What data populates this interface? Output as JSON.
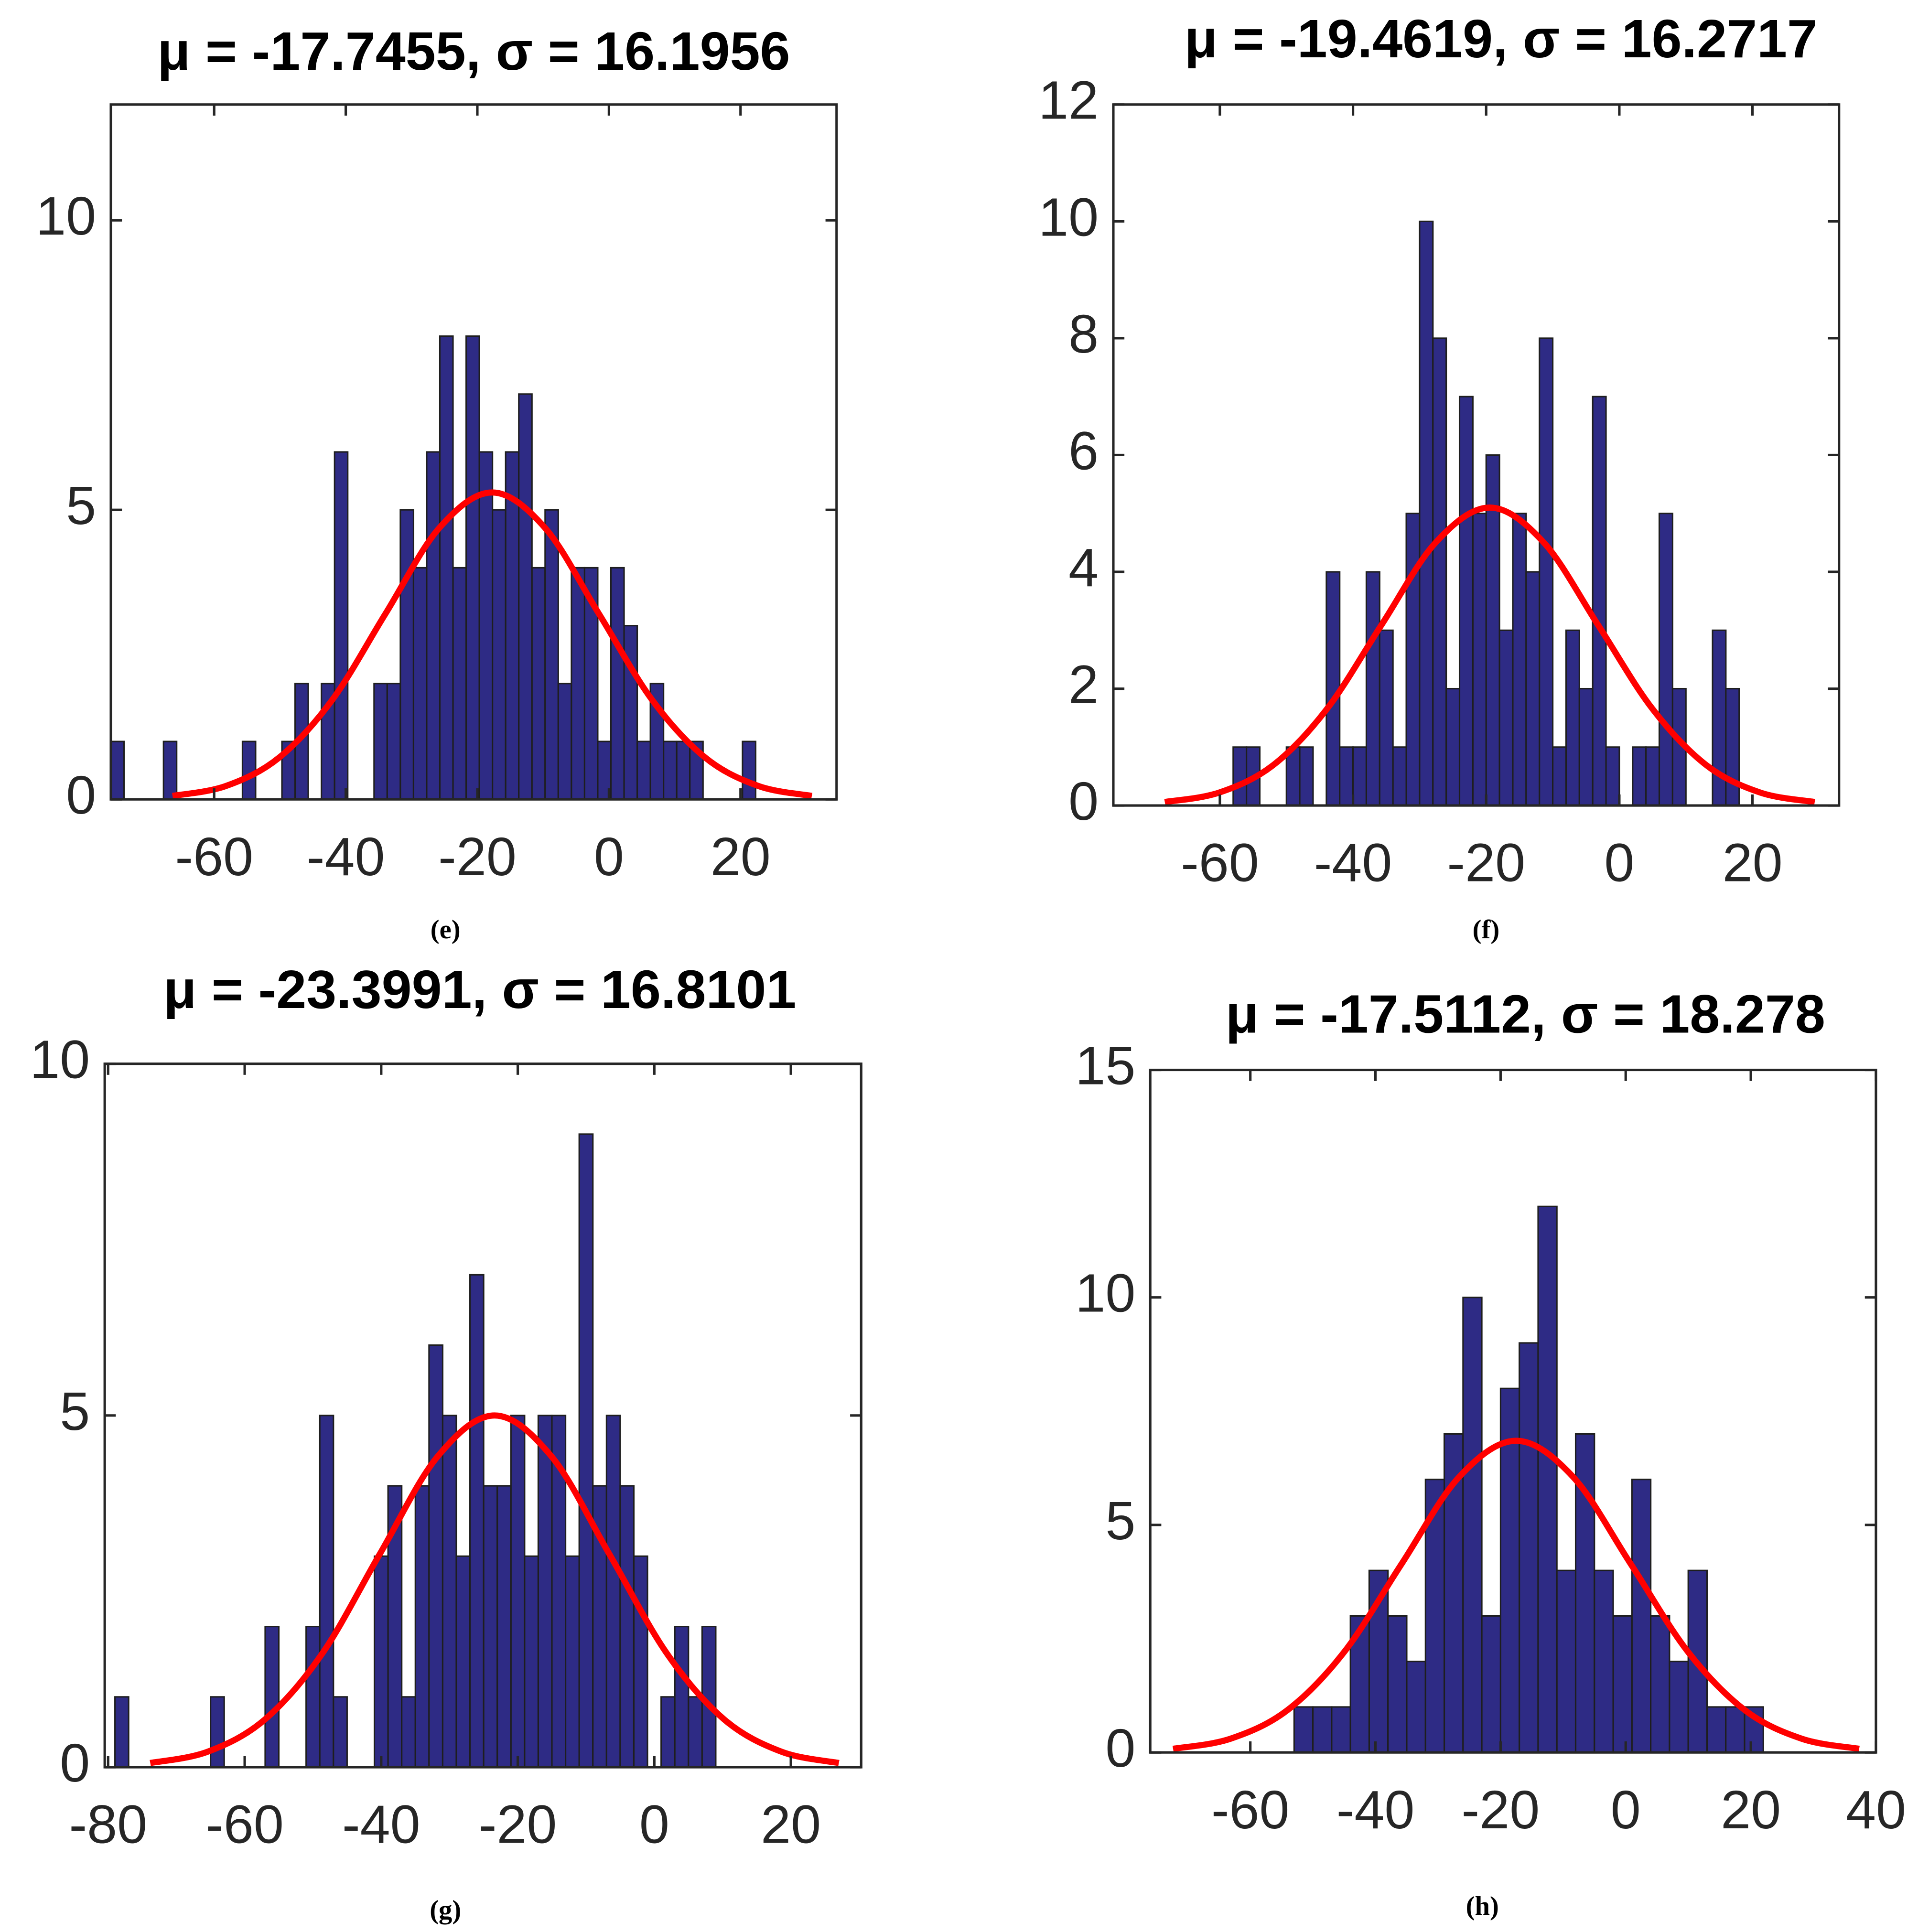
{
  "chart_data": [
    {
      "type": "histogram",
      "title": "μ = -17.7455, σ = 16.1956",
      "caption": "(e)",
      "bins": [
        -75.7,
        -73.7,
        -71.7,
        -69.7,
        -67.7,
        -65.7,
        -63.7,
        -61.7,
        -59.7,
        -57.7,
        -55.7,
        -53.7,
        -51.7,
        -49.7,
        -47.7,
        -45.7,
        -43.7,
        -41.7,
        -39.7,
        -37.7,
        -35.7,
        -33.7,
        -31.7,
        -29.7,
        -27.7,
        -25.7,
        -23.7,
        -21.7,
        -19.7,
        -17.7,
        -15.7,
        -13.7,
        -11.7,
        -9.7,
        -7.7,
        -5.7,
        -3.7,
        -1.7,
        0.3,
        2.3,
        4.3,
        6.3,
        8.3,
        10.3,
        12.3,
        14.3,
        16.3,
        18.3,
        20.3,
        22.3,
        24.3
      ],
      "counts": [
        1,
        0,
        0,
        0,
        1,
        0,
        0,
        0,
        0,
        0,
        1,
        0,
        0,
        1,
        2,
        0,
        2,
        6,
        0,
        0,
        2,
        2,
        5,
        4,
        6,
        8,
        4,
        8,
        6,
        5,
        6,
        7,
        4,
        5,
        2,
        4,
        4,
        1,
        4,
        3,
        1,
        2,
        1,
        1,
        1,
        0,
        0,
        0,
        1,
        0
      ],
      "color": "#2e2b85",
      "edgecolor": "#1e1e1e",
      "curve": {
        "color": "#ff0000",
        "x": [
          -66.33,
          -58.24,
          -50.14,
          -42.04,
          -33.94,
          -25.84,
          -17.75,
          -9.65,
          -1.55,
          6.55,
          14.65,
          22.74,
          30.84
        ],
        "values": [
          0.06,
          0.23,
          0.72,
          1.72,
          3.21,
          4.68,
          5.3,
          4.68,
          3.21,
          1.72,
          0.72,
          0.23,
          0.06
        ]
      },
      "xlim": [
        -75.7,
        34.6
      ],
      "ylim": [
        0,
        12
      ],
      "xticks": [
        -60,
        -40,
        -20,
        0,
        20
      ],
      "yticks": [
        0,
        5,
        10
      ]
    },
    {
      "type": "histogram",
      "title": "μ = -19.4619, σ = 16.2717",
      "caption": "(f)",
      "bins": [
        -58,
        -56,
        -54,
        -52,
        -50,
        -48,
        -46,
        -44,
        -42,
        -40,
        -38,
        -36,
        -34,
        -32,
        -30,
        -28,
        -26,
        -24,
        -22,
        -20,
        -18,
        -16,
        -14,
        -12,
        -10,
        -8,
        -6,
        -4,
        -2,
        0,
        2,
        4,
        6,
        8,
        10,
        12,
        14,
        16,
        18
      ],
      "counts": [
        1,
        1,
        0,
        0,
        1,
        1,
        0,
        4,
        1,
        1,
        4,
        3,
        1,
        5,
        10,
        8,
        2,
        7,
        5,
        6,
        3,
        5,
        4,
        8,
        1,
        3,
        2,
        7,
        1,
        0,
        1,
        1,
        5,
        2,
        0,
        0,
        3,
        2
      ],
      "color": "#2e2b85",
      "edgecolor": "#1e1e1e",
      "curve": {
        "color": "#ff0000",
        "x": [
          -68.27,
          -60.14,
          -52.0,
          -43.87,
          -35.73,
          -27.6,
          -19.46,
          -11.33,
          -3.19,
          4.94,
          13.08,
          21.22,
          29.35
        ],
        "values": [
          0.06,
          0.22,
          0.69,
          1.66,
          3.09,
          4.5,
          5.1,
          4.5,
          3.09,
          1.66,
          0.69,
          0.22,
          0.06
        ]
      },
      "xlim": [
        -76,
        33
      ],
      "ylim": [
        0,
        12
      ],
      "xticks": [
        -60,
        -40,
        -20,
        0,
        20
      ],
      "yticks": [
        0,
        2,
        4,
        6,
        8,
        10,
        12
      ]
    },
    {
      "type": "histogram",
      "title": "μ = -23.3991, σ = 16.8101",
      "caption": "(g)",
      "bins": [
        -79,
        -77,
        -75,
        -73,
        -71,
        -69,
        -67,
        -65,
        -63,
        -61,
        -59,
        -57,
        -55,
        -53,
        -51,
        -49,
        -47,
        -45,
        -43,
        -41,
        -39,
        -37,
        -35,
        -33,
        -31,
        -29,
        -27,
        -25,
        -23,
        -21,
        -19,
        -17,
        -15,
        -13,
        -11,
        -9,
        -7,
        -5,
        -3,
        -1,
        1,
        3,
        5,
        7,
        9
      ],
      "counts": [
        1,
        0,
        0,
        0,
        0,
        0,
        0,
        1,
        0,
        0,
        0,
        2,
        0,
        0,
        2,
        5,
        1,
        0,
        0,
        3,
        4,
        1,
        4,
        6,
        5,
        3,
        7,
        4,
        4,
        5,
        3,
        5,
        5,
        3,
        9,
        4,
        5,
        4,
        3,
        0,
        1,
        2,
        1,
        2
      ],
      "color": "#2e2b85",
      "edgecolor": "#1e1e1e",
      "curve": {
        "color": "#ff0000",
        "x": [
          -73.83,
          -65.42,
          -57.02,
          -48.61,
          -40.21,
          -31.8,
          -23.4,
          -14.99,
          -6.59,
          1.82,
          10.22,
          18.63,
          27.03
        ],
        "values": [
          0.06,
          0.22,
          0.68,
          1.62,
          3.03,
          4.41,
          5.0,
          4.41,
          3.03,
          1.62,
          0.68,
          0.22,
          0.06
        ]
      },
      "xlim": [
        -80.5,
        30.3
      ],
      "ylim": [
        0,
        10
      ],
      "xticks": [
        -80,
        -60,
        -40,
        -20,
        0,
        20
      ],
      "yticks": [
        0,
        5,
        10
      ]
    },
    {
      "type": "histogram",
      "title": "μ = -17.5112, σ = 18.278",
      "caption": "(h)",
      "bins": [
        -53,
        -50,
        -47,
        -44,
        -41,
        -38,
        -35,
        -32,
        -29,
        -26,
        -23,
        -20,
        -17,
        -14,
        -11,
        -8,
        -5,
        -2,
        1,
        4,
        7,
        10,
        13,
        16,
        19,
        22
      ],
      "counts": [
        1,
        1,
        1,
        3,
        4,
        3,
        2,
        6,
        7,
        10,
        3,
        8,
        9,
        12,
        4,
        7,
        4,
        3,
        6,
        3,
        2,
        4,
        1,
        1,
        1
      ],
      "color": "#2e2b85",
      "edgecolor": "#1e1e1e",
      "curve": {
        "color": "#ff0000",
        "x": [
          -72.35,
          -63.21,
          -54.07,
          -44.93,
          -35.79,
          -26.65,
          -17.51,
          -8.37,
          0.77,
          9.91,
          19.05,
          28.18,
          37.32
        ],
        "values": [
          0.08,
          0.3,
          0.93,
          2.22,
          4.15,
          6.05,
          6.85,
          6.05,
          4.15,
          2.22,
          0.93,
          0.3,
          0.08
        ]
      },
      "xlim": [
        -76,
        40
      ],
      "ylim": [
        0,
        15
      ],
      "xticks": [
        -60,
        -40,
        -20,
        0,
        20,
        40
      ],
      "yticks": [
        0,
        5,
        10,
        15
      ]
    }
  ]
}
